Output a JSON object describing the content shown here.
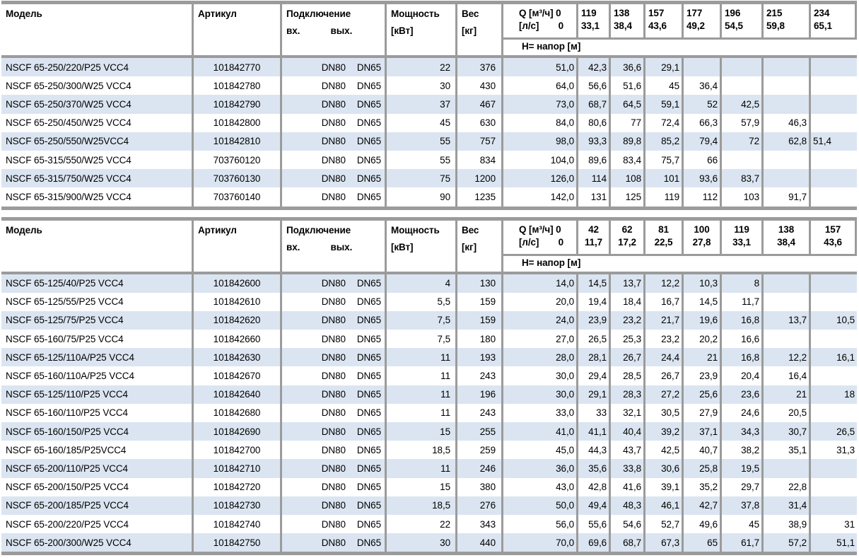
{
  "labels": {
    "model": "Модель",
    "article": "Артикул",
    "connection": "Подключение",
    "inlet": "вх.",
    "outlet": "вых.",
    "power_line1": "Мощность",
    "power_line2": "[кВт]",
    "weight_line1": "Вес",
    "weight_line2": "[кг]",
    "q_line1": "Q [м³/ч] 0",
    "q_line2_label": "[л/с]",
    "q_line2_value": "0",
    "head_band": "H= напор [м]"
  },
  "colors": {
    "row_band_blue": "#dbe5f1",
    "grid_gray": "#9b9b9b"
  },
  "tables": [
    {
      "q_columns": [
        {
          "m3h": "119",
          "lps": "33,1"
        },
        {
          "m3h": "138",
          "lps": "38,4"
        },
        {
          "m3h": "157",
          "lps": "43,6"
        },
        {
          "m3h": "177",
          "lps": "49,2"
        },
        {
          "m3h": "196",
          "lps": "54,5"
        },
        {
          "m3h": "215",
          "lps": "59,8"
        },
        {
          "m3h": "234",
          "lps": "65,1"
        }
      ],
      "rows": [
        {
          "model": "NSCF 65-250/220/P25 VCC4",
          "article": "101842770",
          "dn_in": "DN80",
          "dn_out": "DN65",
          "power": "22",
          "weight": "376",
          "h": [
            "51,0",
            "42,3",
            "36,6",
            "29,1",
            "",
            "",
            "",
            ""
          ]
        },
        {
          "model": "NSCF 65-250/300/W25 VCC4",
          "article": "101842780",
          "dn_in": "DN80",
          "dn_out": "DN65",
          "power": "30",
          "weight": "430",
          "h": [
            "64,0",
            "56,6",
            "51,6",
            "45",
            "36,4",
            "",
            "",
            ""
          ]
        },
        {
          "model": "NSCF 65-250/370/W25 VCC4",
          "article": "101842790",
          "dn_in": "DN80",
          "dn_out": "DN65",
          "power": "37",
          "weight": "467",
          "h": [
            "73,0",
            "68,7",
            "64,5",
            "59,1",
            "52",
            "42,5",
            "",
            ""
          ]
        },
        {
          "model": "NSCF 65-250/450/W25 VCC4",
          "article": "101842800",
          "dn_in": "DN80",
          "dn_out": "DN65",
          "power": "45",
          "weight": "630",
          "h": [
            "84,0",
            "80,6",
            "77",
            "72,4",
            "66,3",
            "57,9",
            "46,3",
            ""
          ]
        },
        {
          "model": "NSCF 65-250/550/W25VCC4",
          "article": "101842810",
          "dn_in": "DN80",
          "dn_out": "DN65",
          "power": "55",
          "weight": "757",
          "h": [
            "98,0",
            "93,3",
            "89,8",
            "85,2",
            "79,4",
            "72",
            "62,8",
            "51,4"
          ],
          "align_left": [
            7
          ]
        },
        {
          "model": "NSCF 65-315/550/W25 VCC4",
          "article": "703760120",
          "dn_in": "DN80",
          "dn_out": "DN65",
          "power": "55",
          "weight": "834",
          "h": [
            "104,0",
            "89,6",
            "83,4",
            "75,7",
            "66",
            "",
            "",
            ""
          ]
        },
        {
          "model": "NSCF 65-315/750/W25 VCC4",
          "article": "703760130",
          "dn_in": "DN80",
          "dn_out": "DN65",
          "power": "75",
          "weight": "1200",
          "h": [
            "126,0",
            "114",
            "108",
            "101",
            "93,6",
            "83,7",
            "",
            ""
          ]
        },
        {
          "model": "NSCF 65-315/900/W25 VCC4",
          "article": "703760140",
          "dn_in": "DN80",
          "dn_out": "DN65",
          "power": "90",
          "weight": "1235",
          "h": [
            "142,0",
            "131",
            "125",
            "119",
            "112",
            "103",
            "91,7",
            ""
          ]
        }
      ]
    },
    {
      "q_columns": [
        {
          "m3h": "42",
          "lps": "11,7"
        },
        {
          "m3h": "62",
          "lps": "17,2"
        },
        {
          "m3h": "81",
          "lps": "22,5"
        },
        {
          "m3h": "100",
          "lps": "27,8"
        },
        {
          "m3h": "119",
          "lps": "33,1"
        },
        {
          "m3h": "138",
          "lps": "38,4"
        },
        {
          "m3h": "157",
          "lps": "43,6"
        }
      ],
      "rows": [
        {
          "model": "NSCF 65-125/40/P25 VCC4",
          "article": "101842600",
          "dn_in": "DN80",
          "dn_out": "DN65",
          "power": "4",
          "weight": "130",
          "h": [
            "14,0",
            "14,5",
            "13,7",
            "12,2",
            "10,3",
            "8",
            "",
            ""
          ]
        },
        {
          "model": "NSCF 65-125/55/P25 VCC4",
          "article": "101842610",
          "dn_in": "DN80",
          "dn_out": "DN65",
          "power": "5,5",
          "weight": "159",
          "h": [
            "20,0",
            "19,4",
            "18,4",
            "16,7",
            "14,5",
            "11,7",
            "",
            ""
          ]
        },
        {
          "model": "NSCF 65-125/75/P25 VCC4",
          "article": "101842620",
          "dn_in": "DN80",
          "dn_out": "DN65",
          "power": "7,5",
          "weight": "159",
          "h": [
            "24,0",
            "23,9",
            "23,2",
            "21,7",
            "19,6",
            "16,8",
            "13,7",
            "10,5"
          ]
        },
        {
          "model": "NSCF 65-160/75/P25 VCC4",
          "article": "101842660",
          "dn_in": "DN80",
          "dn_out": "DN65",
          "power": "7,5",
          "weight": "180",
          "h": [
            "27,0",
            "26,5",
            "25,3",
            "23,2",
            "20,2",
            "16,6",
            "",
            ""
          ]
        },
        {
          "model": "NSCF 65-125/110A/P25 VCC4",
          "article": "101842630",
          "dn_in": "DN80",
          "dn_out": "DN65",
          "power": "11",
          "weight": "193",
          "h": [
            "28,0",
            "28,1",
            "26,7",
            "24,4",
            "21",
            "16,8",
            "12,2",
            "16,1"
          ]
        },
        {
          "model": "NSCF 65-160/110A/P25 VCC4",
          "article": "101842670",
          "dn_in": "DN80",
          "dn_out": "DN65",
          "power": "11",
          "weight": "243",
          "h": [
            "30,0",
            "29,4",
            "28,5",
            "26,7",
            "23,9",
            "20,4",
            "16,4",
            ""
          ]
        },
        {
          "model": "NSCF 65-125/110/P25 VCC4",
          "article": "101842640",
          "dn_in": "DN80",
          "dn_out": "DN65",
          "power": "11",
          "weight": "196",
          "h": [
            "30,0",
            "29,1",
            "28,3",
            "27,2",
            "25,6",
            "23,6",
            "21",
            "18"
          ]
        },
        {
          "model": "NSCF 65-160/110/P25 VCC4",
          "article": "101842680",
          "dn_in": "DN80",
          "dn_out": "DN65",
          "power": "11",
          "weight": "243",
          "h": [
            "33,0",
            "33",
            "32,1",
            "30,5",
            "27,9",
            "24,6",
            "20,5",
            ""
          ]
        },
        {
          "model": "NSCF 65-160/150/P25 VCC4",
          "article": "101842690",
          "dn_in": "DN80",
          "dn_out": "DN65",
          "power": "15",
          "weight": "255",
          "h": [
            "41,0",
            "41,1",
            "40,4",
            "39,2",
            "37,1",
            "34,3",
            "30,7",
            "26,5"
          ]
        },
        {
          "model": "NSCF 65-160/185/P25VCC4",
          "article": "101842700",
          "dn_in": "DN80",
          "dn_out": "DN65",
          "power": "18,5",
          "weight": "259",
          "h": [
            "45,0",
            "44,3",
            "43,7",
            "42,5",
            "40,7",
            "38,2",
            "35,1",
            "31,3"
          ]
        },
        {
          "model": "NSCF 65-200/110/P25 VCC4",
          "article": "101842710",
          "dn_in": "DN80",
          "dn_out": "DN65",
          "power": "11",
          "weight": "246",
          "h": [
            "36,0",
            "35,6",
            "33,8",
            "30,6",
            "25,8",
            "19,5",
            "",
            ""
          ]
        },
        {
          "model": "NSCF 65-200/150/P25 VCC4",
          "article": "101842720",
          "dn_in": "DN80",
          "dn_out": "DN65",
          "power": "15",
          "weight": "380",
          "h": [
            "43,0",
            "42,8",
            "41,6",
            "39,1",
            "35,2",
            "29,7",
            "22,8",
            ""
          ]
        },
        {
          "model": "NSCF 65-200/185/P25 VCC4",
          "article": "101842730",
          "dn_in": "DN80",
          "dn_out": "DN65",
          "power": "18,5",
          "weight": "276",
          "h": [
            "50,0",
            "49,4",
            "48,3",
            "46,1",
            "42,7",
            "37,8",
            "31,4",
            ""
          ]
        },
        {
          "model": "NSCF 65-200/220/P25 VCC4",
          "article": "101842740",
          "dn_in": "DN80",
          "dn_out": "DN65",
          "power": "22",
          "weight": "343",
          "h": [
            "56,0",
            "55,6",
            "54,6",
            "52,7",
            "49,6",
            "45",
            "38,9",
            "31"
          ]
        },
        {
          "model": "NSCF 65-200/300/W25 VCC4",
          "article": "101842750",
          "dn_in": "DN80",
          "dn_out": "DN65",
          "power": "30",
          "weight": "440",
          "h": [
            "70,0",
            "69,6",
            "68,7",
            "67,3",
            "65",
            "61,7",
            "57,2",
            "51,1"
          ]
        }
      ]
    }
  ]
}
